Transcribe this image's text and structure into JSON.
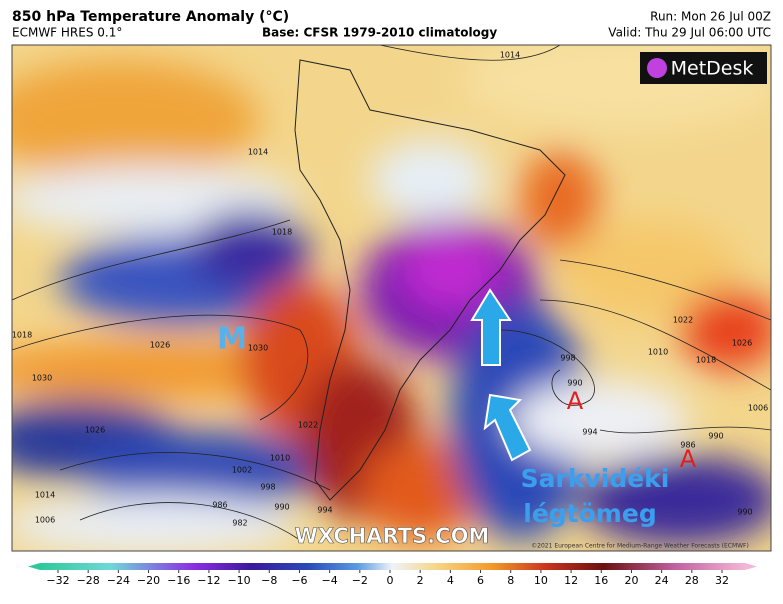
{
  "header": {
    "title": "850 hPa Temperature Anomaly (°C)",
    "model": "ECMWF HRES 0.1°",
    "base": "Base: CFSR 1979-2010 climatology",
    "run": "Run: Mon 26 Jul 00Z",
    "valid": "Valid: Thu 29 Jul 06:00 UTC"
  },
  "map": {
    "logo": "MetDesk",
    "watermark": "WXCHARTS.COM",
    "copyright": "©2021 European Centre for Medium-Range Weather Forecasts (ECMWF)",
    "low_label": "M",
    "high_labels": [
      "A",
      "A"
    ],
    "annotation": [
      "Sarkvidéki",
      "légtömeg"
    ],
    "isobar_labels": [
      "1014",
      "1014",
      "1018",
      "1026",
      "1030",
      "1018",
      "1030",
      "1026",
      "1022",
      "1010",
      "1002",
      "998",
      "990",
      "986",
      "982",
      "994",
      "1014",
      "1006",
      "998",
      "990",
      "994",
      "986",
      "990",
      "1022",
      "1010",
      "1018",
      "1026",
      "1006",
      "990"
    ]
  },
  "colorbar": {
    "ticks": [
      {
        "value": -32,
        "label": "−32"
      },
      {
        "value": -28,
        "label": "−28"
      },
      {
        "value": -24,
        "label": "−24"
      },
      {
        "value": -20,
        "label": "−20"
      },
      {
        "value": -16,
        "label": "−16"
      },
      {
        "value": -12,
        "label": "−12"
      },
      {
        "value": -10,
        "label": "−10"
      },
      {
        "value": -8,
        "label": "−8"
      },
      {
        "value": -6,
        "label": "−6"
      },
      {
        "value": -4,
        "label": "−4"
      },
      {
        "value": -2,
        "label": "−2"
      },
      0,
      2,
      4,
      6,
      8,
      10,
      12,
      16,
      20,
      24,
      28,
      32
    ]
  }
}
